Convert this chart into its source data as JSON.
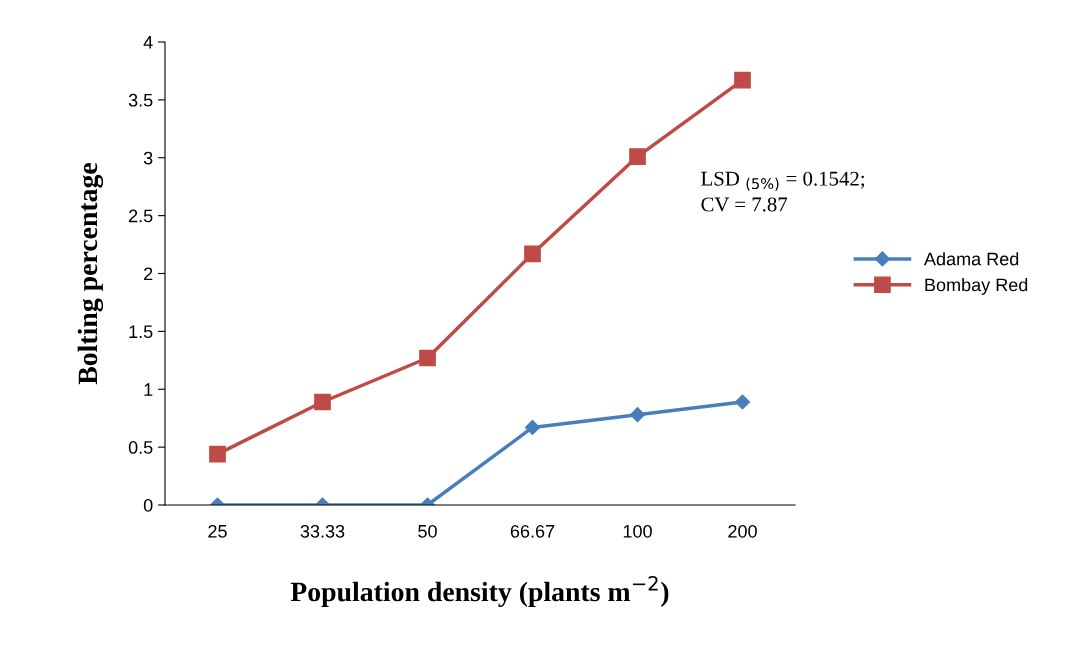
{
  "chart_data": {
    "type": "line",
    "xlabel": "Population density (plants m$^{−2}$)",
    "ylabel": "Bolting percentage",
    "categories": [
      "25",
      "33.33",
      "50",
      "66.67",
      "100",
      "200"
    ],
    "series": [
      {
        "name": "Adama Red",
        "color": "#4a7ebb",
        "marker": "diamond",
        "values": [
          0,
          0,
          0,
          0.67,
          0.78,
          0.89
        ]
      },
      {
        "name": "Bombay Red",
        "color": "#be4b48",
        "marker": "square",
        "values": [
          0.44,
          0.89,
          1.27,
          2.17,
          3.01,
          3.67
        ]
      }
    ],
    "ylim": [
      0,
      4
    ],
    "yticks": [
      0,
      0.5,
      1,
      1.5,
      2,
      2.5,
      3,
      3.5,
      4
    ],
    "annotations": [
      "LSD $_{(5%)}$ = 0.1542;\nCV = 7.87"
    ],
    "grid": false,
    "legend": "right",
    "line_style": "solid"
  }
}
